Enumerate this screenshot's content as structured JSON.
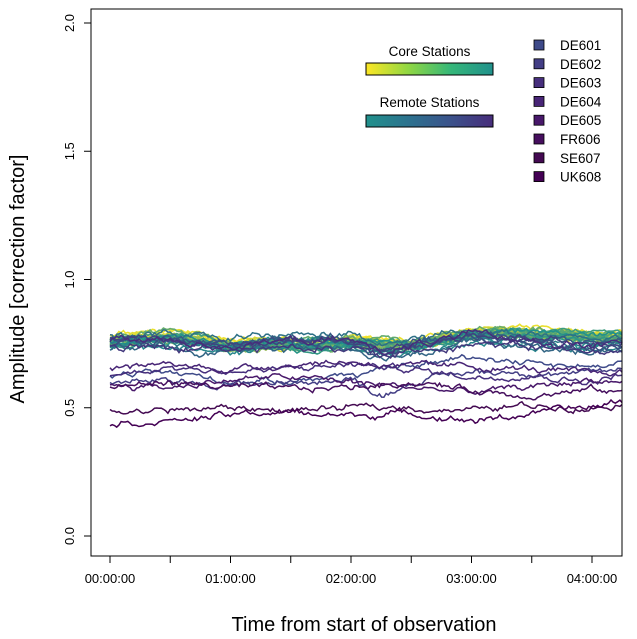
{
  "chart_data": {
    "type": "line",
    "title": "",
    "xlabel": "Time from start of observation",
    "ylabel": "Amplitude [correction factor]",
    "ylim": [
      0.0,
      2.0
    ],
    "y_ticks": [
      "0.0",
      "0.5",
      "1.0",
      "1.5",
      "2.0"
    ],
    "xlim_hours": [
      -0.2,
      4.27
    ],
    "x_ticks": [
      "00:00:00",
      "01:00:00",
      "02:00:00",
      "03:00:00",
      "04:00:00"
    ],
    "grid": false,
    "legend": {
      "placement": "top-right",
      "gradient_bars": [
        {
          "label": "Core Stations",
          "colors": [
            "#fde725",
            "#90d743",
            "#35b779",
            "#21918c"
          ]
        },
        {
          "label": "Remote Stations",
          "colors": [
            "#21918c",
            "#2c728e",
            "#3b528b",
            "#472d7b"
          ]
        }
      ],
      "entries": [
        {
          "label": "DE601",
          "color": "#3e4a89"
        },
        {
          "label": "DE602",
          "color": "#433e85"
        },
        {
          "label": "DE603",
          "color": "#472f7d"
        },
        {
          "label": "DE604",
          "color": "#482576"
        },
        {
          "label": "DE605",
          "color": "#48186a"
        },
        {
          "label": "FR606",
          "color": "#460f5e"
        },
        {
          "label": "SE607",
          "color": "#440a52"
        },
        {
          "label": "UK608",
          "color": "#440154"
        }
      ]
    },
    "x_range_hours": [
      0,
      4.25
    ],
    "core_series": {
      "count": 24,
      "base_level": 0.765,
      "color_range": [
        "#fde725",
        "#21918c"
      ],
      "profile": [
        [
          0,
          0.76
        ],
        [
          0.25,
          0.77
        ],
        [
          0.5,
          0.78
        ],
        [
          0.75,
          0.77
        ],
        [
          1.0,
          0.74
        ],
        [
          1.25,
          0.75
        ],
        [
          1.5,
          0.75
        ],
        [
          1.75,
          0.745
        ],
        [
          2.0,
          0.76
        ],
        [
          2.25,
          0.75
        ],
        [
          2.5,
          0.745
        ],
        [
          2.75,
          0.77
        ],
        [
          3.0,
          0.79
        ],
        [
          3.25,
          0.8
        ],
        [
          3.5,
          0.79
        ],
        [
          3.75,
          0.79
        ],
        [
          4.0,
          0.78
        ],
        [
          4.25,
          0.78
        ]
      ]
    },
    "remote_series": {
      "count": 10,
      "color_range": [
        "#21918c",
        "#472d7b"
      ],
      "profile": [
        [
          0,
          0.76
        ],
        [
          0.5,
          0.76
        ],
        [
          1.0,
          0.74
        ],
        [
          1.5,
          0.76
        ],
        [
          2.0,
          0.76
        ],
        [
          2.25,
          0.72
        ],
        [
          2.5,
          0.74
        ],
        [
          3.0,
          0.78
        ],
        [
          3.5,
          0.76
        ],
        [
          4.0,
          0.74
        ],
        [
          4.25,
          0.75
        ]
      ]
    },
    "international_series": [
      {
        "name": "DE601",
        "values": [
          [
            0,
            0.62
          ],
          [
            0.5,
            0.64
          ],
          [
            1.0,
            0.6
          ],
          [
            1.5,
            0.61
          ],
          [
            2.0,
            0.63
          ],
          [
            2.5,
            0.66
          ],
          [
            3.0,
            0.7
          ],
          [
            3.5,
            0.68
          ],
          [
            4.0,
            0.66
          ],
          [
            4.25,
            0.68
          ]
        ]
      },
      {
        "name": "DE602",
        "values": [
          [
            0,
            0.6
          ],
          [
            0.5,
            0.6
          ],
          [
            1.0,
            0.59
          ],
          [
            1.5,
            0.6
          ],
          [
            2.0,
            0.61
          ],
          [
            2.25,
            0.55
          ],
          [
            2.5,
            0.6
          ],
          [
            3.0,
            0.64
          ],
          [
            3.5,
            0.64
          ],
          [
            4.0,
            0.63
          ],
          [
            4.25,
            0.65
          ]
        ]
      },
      {
        "name": "DE603",
        "values": [
          [
            0,
            0.63
          ],
          [
            0.5,
            0.66
          ],
          [
            1.0,
            0.64
          ],
          [
            1.5,
            0.65
          ],
          [
            2.0,
            0.67
          ],
          [
            2.5,
            0.65
          ],
          [
            3.0,
            0.62
          ],
          [
            3.5,
            0.63
          ],
          [
            4.0,
            0.6
          ],
          [
            4.25,
            0.63
          ]
        ]
      },
      {
        "name": "DE604",
        "values": [
          [
            0,
            0.65
          ],
          [
            0.5,
            0.67
          ],
          [
            1.0,
            0.65
          ],
          [
            1.5,
            0.67
          ],
          [
            2.0,
            0.68
          ],
          [
            2.5,
            0.66
          ],
          [
            3.0,
            0.66
          ],
          [
            3.5,
            0.65
          ],
          [
            4.0,
            0.63
          ],
          [
            4.25,
            0.64
          ]
        ]
      },
      {
        "name": "DE605",
        "values": [
          [
            0,
            0.59
          ],
          [
            0.5,
            0.58
          ],
          [
            1.0,
            0.61
          ],
          [
            1.5,
            0.62
          ],
          [
            2.0,
            0.6
          ],
          [
            2.5,
            0.58
          ],
          [
            3.0,
            0.56
          ],
          [
            3.5,
            0.58
          ],
          [
            4.0,
            0.61
          ],
          [
            4.25,
            0.6
          ]
        ]
      },
      {
        "name": "FR606",
        "values": [
          [
            0,
            0.58
          ],
          [
            0.5,
            0.6
          ],
          [
            1.0,
            0.58
          ],
          [
            1.5,
            0.57
          ],
          [
            2.0,
            0.58
          ],
          [
            2.5,
            0.6
          ],
          [
            3.0,
            0.57
          ],
          [
            3.5,
            0.55
          ],
          [
            4.0,
            0.57
          ],
          [
            4.25,
            0.56
          ]
        ]
      },
      {
        "name": "SE607",
        "values": [
          [
            0,
            0.49
          ],
          [
            0.5,
            0.49
          ],
          [
            1.0,
            0.5
          ],
          [
            1.5,
            0.49
          ],
          [
            2.0,
            0.5
          ],
          [
            2.5,
            0.5
          ],
          [
            3.0,
            0.49
          ],
          [
            3.5,
            0.51
          ],
          [
            4.0,
            0.5
          ],
          [
            4.25,
            0.52
          ]
        ]
      },
      {
        "name": "UK608",
        "values": [
          [
            0,
            0.44
          ],
          [
            0.5,
            0.45
          ],
          [
            1.0,
            0.47
          ],
          [
            1.25,
            0.48
          ],
          [
            1.5,
            0.48
          ],
          [
            2.0,
            0.47
          ],
          [
            2.5,
            0.48
          ],
          [
            3.0,
            0.45
          ],
          [
            3.25,
            0.46
          ],
          [
            3.5,
            0.48
          ],
          [
            4.0,
            0.5
          ],
          [
            4.25,
            0.53
          ]
        ]
      }
    ]
  }
}
